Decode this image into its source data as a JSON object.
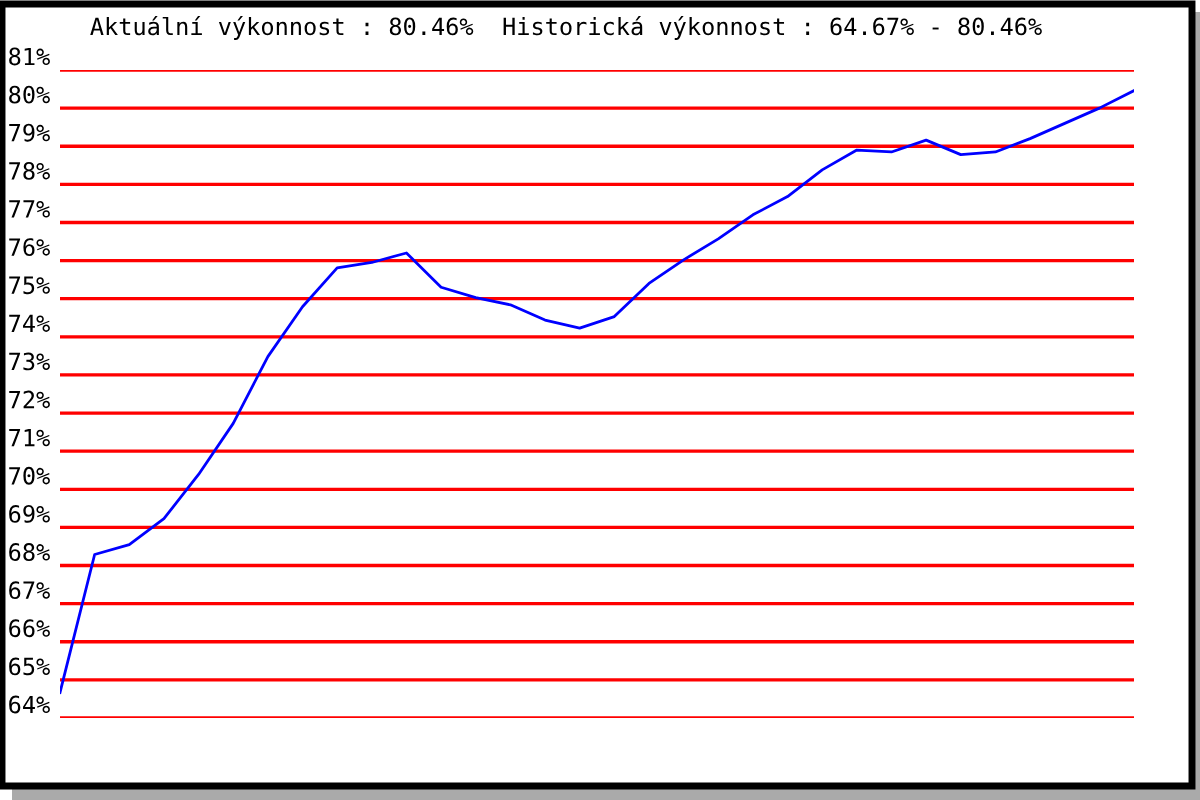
{
  "chart_data": {
    "type": "line",
    "title": "Aktuální výkonnost : 80.46%  Historická výkonnost : 64.67% - 80.46%",
    "categories": [
      null,
      null,
      null,
      null,
      null,
      null,
      null,
      null,
      null,
      null,
      null,
      null,
      null,
      null,
      null,
      null,
      null,
      null,
      null,
      null,
      null,
      null,
      null,
      null,
      null,
      null,
      null,
      null,
      null,
      null,
      null,
      null
    ],
    "series": [
      {
        "color": "#0000ff",
        "values": [
          64.67,
          68.29,
          68.55,
          69.23,
          70.39,
          71.73,
          73.48,
          74.79,
          75.81,
          75.95,
          76.2,
          75.3,
          75.03,
          74.84,
          74.44,
          74.23,
          74.53,
          75.4,
          76.02,
          76.57,
          77.2,
          77.68,
          78.38,
          78.9,
          78.85,
          79.16,
          78.78,
          78.85,
          79.2,
          79.6,
          80.0,
          80.46
        ]
      }
    ],
    "ylim": [
      64,
      81
    ],
    "yticks": [
      {
        "value": 64,
        "label": "64%"
      },
      {
        "value": 65,
        "label": "65%"
      },
      {
        "value": 66,
        "label": "66%"
      },
      {
        "value": 67,
        "label": "67%"
      },
      {
        "value": 68,
        "label": "68%"
      },
      {
        "value": 69,
        "label": "69%"
      },
      {
        "value": 70,
        "label": "70%"
      },
      {
        "value": 71,
        "label": "71%"
      },
      {
        "value": 72,
        "label": "72%"
      },
      {
        "value": 73,
        "label": "73%"
      },
      {
        "value": 74,
        "label": "74%"
      },
      {
        "value": 75,
        "label": "75%"
      },
      {
        "value": 76,
        "label": "76%"
      },
      {
        "value": 77,
        "label": "77%"
      },
      {
        "value": 78,
        "label": "78%"
      },
      {
        "value": 79,
        "label": "79%"
      },
      {
        "value": 80,
        "label": "80%"
      },
      {
        "value": 81,
        "label": "81%"
      }
    ],
    "grid": "y",
    "tick_labels": "y",
    "marker": "none",
    "line_style": "solid"
  }
}
